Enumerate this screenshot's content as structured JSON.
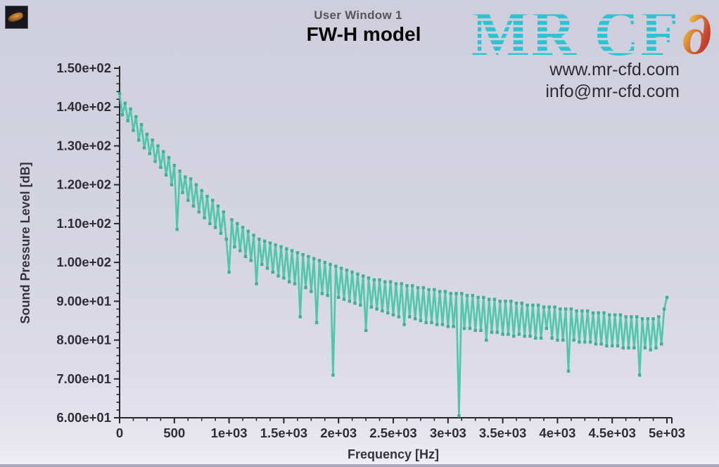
{
  "window": {
    "title": "User Window 1",
    "subtitle": "FW-H model"
  },
  "logo": {
    "text": "MR CF",
    "suffix_glyph": "∂",
    "stripe_color": "#2ec3d1",
    "website": "www.mr-cfd.com",
    "email": "info@mr-cfd.com"
  },
  "colors": {
    "background_top": "#cfcedc",
    "background_bottom": "#efeef5",
    "curve": "#4ec8a8",
    "marker": "#3fb094",
    "axis": "#26262e",
    "tick_text": "#2e2e38"
  },
  "chart_data": {
    "type": "line",
    "title": "FW-H model",
    "xlabel": "Frequency [Hz]",
    "ylabel": "Sound Pressure Level [dB]",
    "xlim": [
      0,
      5000
    ],
    "ylim": [
      60,
      150
    ],
    "grid": false,
    "legend": "none",
    "x_ticks": {
      "values": [
        0,
        500,
        1000,
        1500,
        2000,
        2500,
        3000,
        3500,
        4000,
        4500,
        5000
      ],
      "labels": [
        "0",
        "500",
        "1e+03",
        "1.5e+03",
        "2e+03",
        "2.5e+03",
        "3e+03",
        "3.5e+03",
        "4e+03",
        "4.5e+03",
        "5e+03"
      ]
    },
    "y_ticks": {
      "values": [
        150,
        140,
        130,
        120,
        110,
        100,
        90,
        80,
        70,
        60
      ],
      "labels": [
        "1.50e+02",
        "1.40e+02",
        "1.30e+02",
        "1.20e+02",
        "1.10e+02",
        "1.00e+02",
        "9.00e+01",
        "8.00e+01",
        "7.00e+01",
        "6.00e+01"
      ]
    },
    "x_minor_step": 125,
    "y_minor_step": 2,
    "marker": "square",
    "series": [
      {
        "name": "Sound Pressure Level",
        "x_start": 0,
        "x_step": 25,
        "values": [
          143.5,
          138,
          141,
          136.5,
          139.5,
          134,
          137.5,
          131.5,
          135.5,
          129.5,
          133,
          128,
          131.5,
          126,
          130,
          124.5,
          128.5,
          122.5,
          127,
          120,
          125,
          108.5,
          123.5,
          118,
          122,
          116,
          121.5,
          114.5,
          120,
          113,
          118.5,
          111.5,
          117,
          110,
          116,
          109,
          114.5,
          107.5,
          113,
          106,
          97.5,
          111,
          104,
          110,
          103,
          109,
          101.5,
          108,
          100.5,
          107,
          94.5,
          106,
          99.5,
          105.5,
          98.5,
          105,
          97.5,
          104.5,
          96.5,
          104,
          96,
          103.5,
          95,
          103,
          94.5,
          102.5,
          86,
          102,
          93.5,
          101.5,
          92.5,
          101,
          84.5,
          100.5,
          92,
          100,
          91.5,
          99.5,
          71,
          99,
          91,
          98.5,
          90.5,
          98,
          90,
          97.5,
          89.5,
          97,
          89,
          96.5,
          82.5,
          96,
          88.5,
          95.5,
          88,
          95.5,
          87.5,
          95,
          87,
          95,
          86.5,
          94.5,
          86,
          94.5,
          84,
          94,
          86,
          94,
          85.5,
          93.5,
          85,
          93.5,
          84.5,
          93,
          84.5,
          93,
          84,
          92.5,
          84,
          92.5,
          83.5,
          92,
          83.5,
          92,
          60.5,
          92,
          83,
          91.5,
          83,
          91.5,
          82.5,
          91,
          82.5,
          91,
          80,
          90.5,
          82,
          90.5,
          82,
          90,
          81.5,
          90,
          81.5,
          90,
          81,
          89.5,
          81.5,
          89.5,
          81,
          89,
          81,
          89,
          80.5,
          89,
          80.5,
          88.5,
          83,
          88.5,
          80.5,
          88.5,
          80,
          88,
          80,
          88,
          72,
          88,
          80,
          87.5,
          79.5,
          87.5,
          79.5,
          87.5,
          79.5,
          87,
          79,
          87,
          79,
          87,
          78.5,
          86.5,
          78.5,
          86.5,
          78.5,
          86.5,
          78,
          86,
          78,
          86,
          78,
          86,
          71,
          85.5,
          78,
          85.5,
          77.5,
          85.5,
          78,
          86,
          79,
          88,
          91
        ]
      }
    ]
  }
}
